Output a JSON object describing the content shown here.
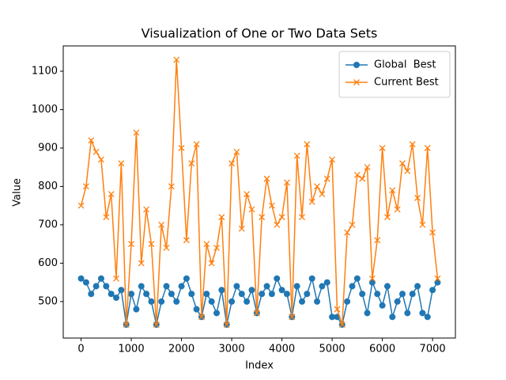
{
  "chart_data": {
    "type": "line",
    "title": "Visualization of One or Two Data Sets",
    "x_label": "Index",
    "y_label": "Value",
    "x": [
      0,
      100,
      200,
      300,
      400,
      500,
      600,
      700,
      800,
      900,
      1000,
      1100,
      1200,
      1300,
      1400,
      1500,
      1600,
      1700,
      1800,
      1900,
      2000,
      2100,
      2200,
      2300,
      2400,
      2500,
      2600,
      2700,
      2800,
      2900,
      3000,
      3100,
      3200,
      3300,
      3400,
      3500,
      3600,
      3700,
      3800,
      3900,
      4000,
      4100,
      4200,
      4300,
      4400,
      4500,
      4600,
      4700,
      4800,
      4900,
      5000,
      5100,
      5200,
      5300,
      5400,
      5500,
      5600,
      5700,
      5800,
      5900,
      6000,
      6100,
      6200,
      6300,
      6400,
      6500,
      6600,
      6700,
      6800,
      6900,
      7000,
      7100
    ],
    "series": [
      {
        "name": "Global  Best",
        "color": "#1f77b4",
        "marker": "o",
        "values": [
          560,
          550,
          520,
          540,
          560,
          540,
          520,
          510,
          530,
          440,
          520,
          480,
          540,
          520,
          500,
          440,
          500,
          540,
          520,
          500,
          540,
          560,
          520,
          480,
          460,
          520,
          500,
          470,
          530,
          440,
          500,
          540,
          520,
          500,
          530,
          470,
          520,
          540,
          520,
          560,
          530,
          520,
          460,
          540,
          500,
          520,
          560,
          500,
          540,
          550,
          460,
          460,
          440,
          500,
          540,
          560,
          520,
          470,
          550,
          520,
          490,
          540,
          460,
          500,
          520,
          470,
          520,
          540,
          470,
          460,
          530,
          550
        ]
      },
      {
        "name": "Current Best",
        "color": "#ff7f0e",
        "marker": "x",
        "values": [
          750,
          800,
          920,
          890,
          870,
          720,
          780,
          560,
          860,
          440,
          650,
          940,
          600,
          740,
          650,
          440,
          700,
          640,
          800,
          1130,
          900,
          660,
          860,
          910,
          460,
          650,
          600,
          640,
          720,
          440,
          860,
          890,
          690,
          780,
          740,
          470,
          720,
          820,
          750,
          700,
          720,
          810,
          460,
          880,
          720,
          910,
          760,
          800,
          780,
          820,
          870,
          480,
          440,
          680,
          700,
          830,
          820,
          850,
          560,
          660,
          900,
          720,
          790,
          740,
          860,
          840,
          910,
          770,
          700,
          900,
          680,
          560
        ]
      }
    ],
    "xlim": [
      -355,
      7455
    ],
    "ylim": [
      405,
      1166
    ],
    "xticks": [
      0,
      1000,
      2000,
      3000,
      4000,
      5000,
      6000,
      7000
    ],
    "yticks": [
      500,
      600,
      700,
      800,
      900,
      1000,
      1100
    ],
    "legend": "upper right"
  }
}
